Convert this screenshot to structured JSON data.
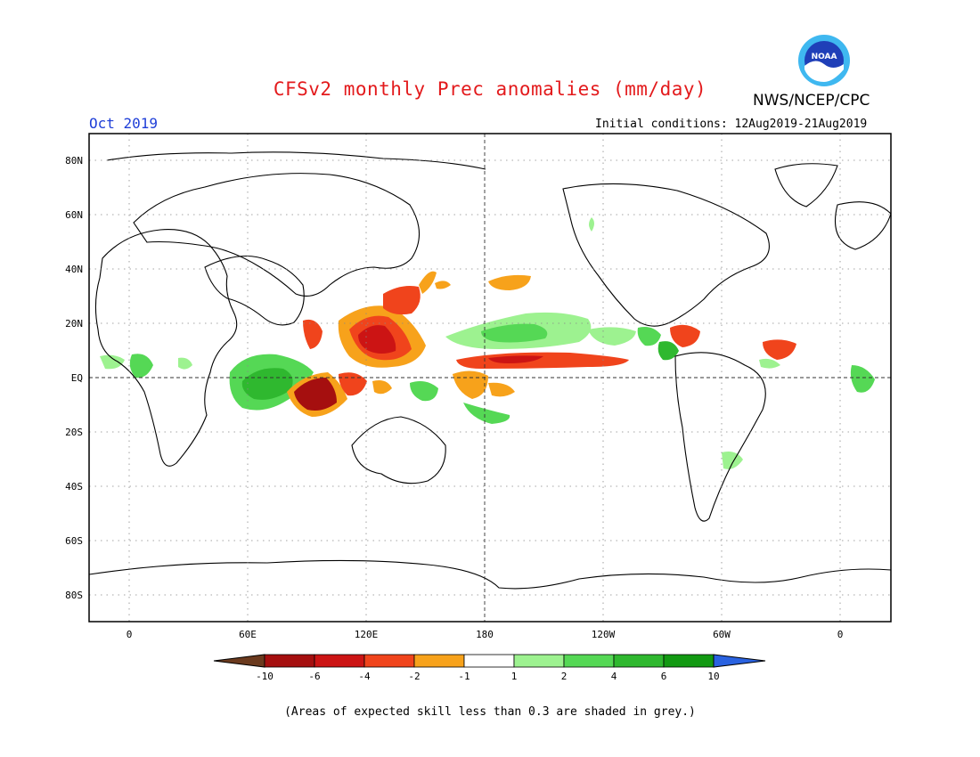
{
  "header": {
    "title": "CFSv2 monthly Prec anomalies (mm/day)",
    "org": "NWS/NCEP/CPC",
    "month": "Oct 2019",
    "initial_conditions": "Initial conditions: 12Aug2019-21Aug2019",
    "logo_text": "NOAA"
  },
  "axes": {
    "lat_labels": [
      "80N",
      "60N",
      "40N",
      "20N",
      "EQ",
      "20S",
      "40S",
      "60S",
      "80S"
    ],
    "lon_labels": [
      "0",
      "60E",
      "120E",
      "180",
      "120W",
      "60W",
      "0"
    ]
  },
  "colorbar": {
    "labels": [
      "-10",
      "-6",
      "-4",
      "-2",
      "-1",
      "1",
      "2",
      "4",
      "6",
      "10"
    ],
    "colors": [
      "#6b3a1e",
      "#a50f0f",
      "#cc1414",
      "#f0441c",
      "#f7a21b",
      "#ffffff",
      "#9df290",
      "#55d855",
      "#2fb82f",
      "#129912",
      "#2a62e0"
    ]
  },
  "footnote": "(Areas of expected skill less than 0.3 are shaded in grey.)"
}
